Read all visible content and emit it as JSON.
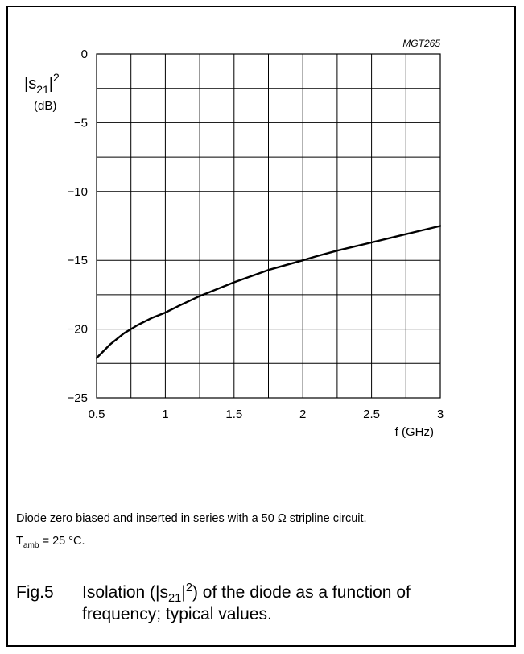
{
  "chart_data": {
    "type": "line",
    "code": "MGT265",
    "ylabel": {
      "prefix": "|s",
      "sub": "21",
      "suffix": "|",
      "sup": "2"
    },
    "yunit": "(dB)",
    "xlabel": "f (GHz)",
    "xlim": [
      0.5,
      3
    ],
    "ylim": [
      -25,
      0
    ],
    "xticks": [
      0.5,
      1,
      1.5,
      2,
      2.5,
      3
    ],
    "xtick_labels": [
      "0.5",
      "1",
      "1.5",
      "2",
      "2.5",
      "3"
    ],
    "yticks": [
      0,
      -5,
      -10,
      -15,
      -20,
      -25
    ],
    "ytick_labels": [
      "0",
      "−5",
      "−10",
      "−15",
      "−20",
      "−25"
    ],
    "xgrid_step": 0.25,
    "ygrid_step": 2.5,
    "grid": true,
    "series": [
      {
        "x": [
          0.5,
          0.6,
          0.7,
          0.75,
          0.8,
          0.9,
          1.0,
          1.1,
          1.25,
          1.5,
          1.75,
          2.0,
          2.1,
          2.25,
          2.5,
          2.75,
          3.0
        ],
        "y": [
          -22.1,
          -21.1,
          -20.3,
          -20.0,
          -19.7,
          -19.2,
          -18.8,
          -18.3,
          -17.6,
          -16.6,
          -15.7,
          -15.0,
          -14.7,
          -14.3,
          -13.7,
          -13.1,
          -12.5
        ]
      }
    ]
  },
  "notes": {
    "line1": "Diode zero biased and inserted in series with a 50 Ω stripline circuit.",
    "line2_T": "T",
    "line2_sub": "amb",
    "line2_rest": " = 25 °C."
  },
  "caption": {
    "fig": "Fig.5",
    "text_a": "Isolation (|s",
    "text_sub": "21",
    "text_b": "|",
    "text_sup": "2",
    "text_c": ") of the diode as a function of frequency; typical values."
  }
}
